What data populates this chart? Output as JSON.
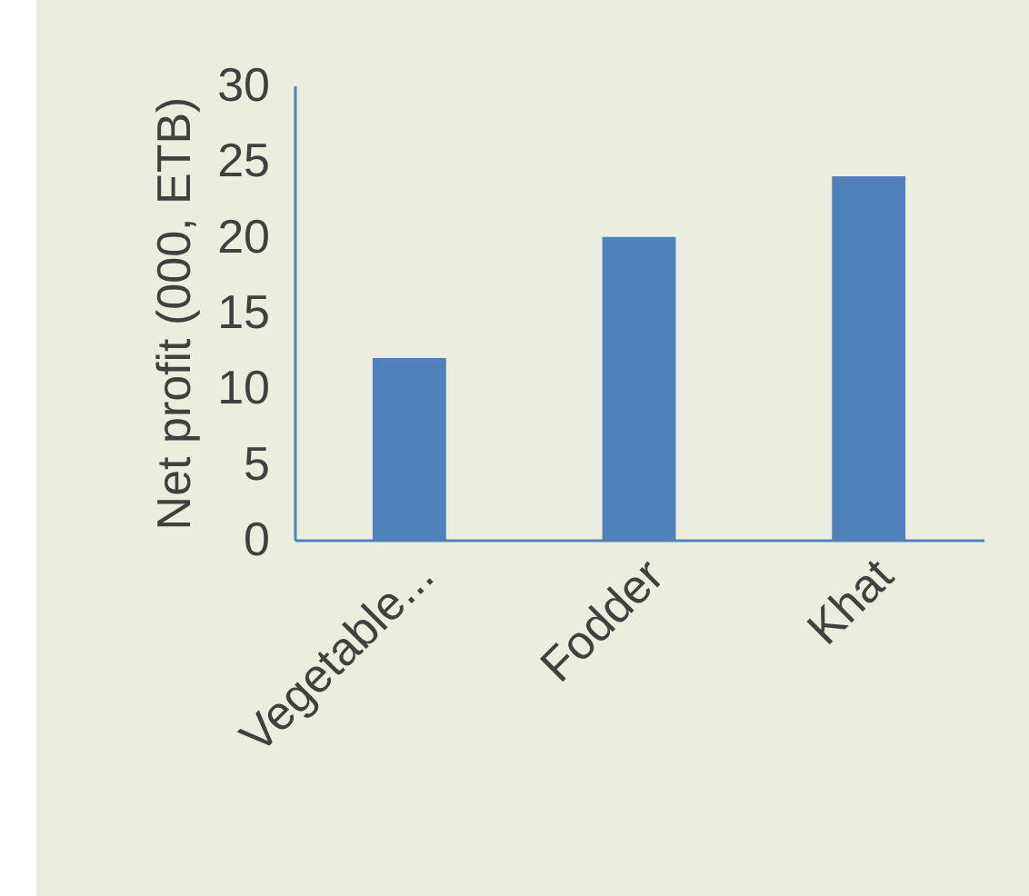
{
  "chart_data": {
    "type": "bar",
    "ylabel": "Net profit (000, ETB)",
    "categories": [
      "Vegetable...",
      "Fodder",
      "Khat"
    ],
    "values": [
      12,
      20,
      24
    ],
    "color": "#4f81bd",
    "ylim": [
      0,
      30
    ],
    "yticks": [
      0,
      5,
      10,
      15,
      20,
      25,
      30
    ],
    "grid": false
  }
}
